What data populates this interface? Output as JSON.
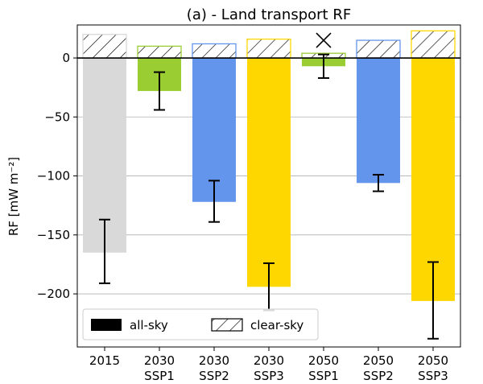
{
  "chart_data": {
    "type": "bar",
    "title": "(a) - Land transport RF",
    "xlabel": "",
    "ylabel": "RF [mW m⁻²]",
    "ylim": [
      -245,
      28
    ],
    "yticks": [
      0,
      -50,
      -100,
      -150,
      -200
    ],
    "grid": "horizontal",
    "categories": [
      [
        "2015"
      ],
      [
        "2030",
        "SSP1"
      ],
      [
        "2030",
        "SSP2"
      ],
      [
        "2030",
        "SSP3"
      ],
      [
        "2050",
        "SSP1"
      ],
      [
        "2050",
        "SSP2"
      ],
      [
        "2050",
        "SSP3"
      ]
    ],
    "colors": [
      "#d9d9d9",
      "#9acd32",
      "#6495ed",
      "#ffd700",
      "#9acd32",
      "#6495ed",
      "#ffd700"
    ],
    "series": [
      {
        "name": "all-sky",
        "values": [
          -165,
          -28,
          -122,
          -194,
          -7,
          -106,
          -206
        ],
        "error_low": [
          -191,
          -44,
          -139,
          -214,
          -17,
          -113,
          -238
        ],
        "error_high": [
          -137,
          -12,
          -104,
          -174,
          3,
          -99,
          -173
        ]
      },
      {
        "name": "clear-sky",
        "values": [
          20,
          10,
          12,
          16,
          4,
          15,
          23
        ]
      }
    ],
    "annotations": [
      {
        "category_index": 4,
        "marker": "x",
        "y": 15
      }
    ],
    "legend": {
      "placement": "bottom-left",
      "entries": [
        "all-sky",
        "clear-sky"
      ]
    }
  }
}
